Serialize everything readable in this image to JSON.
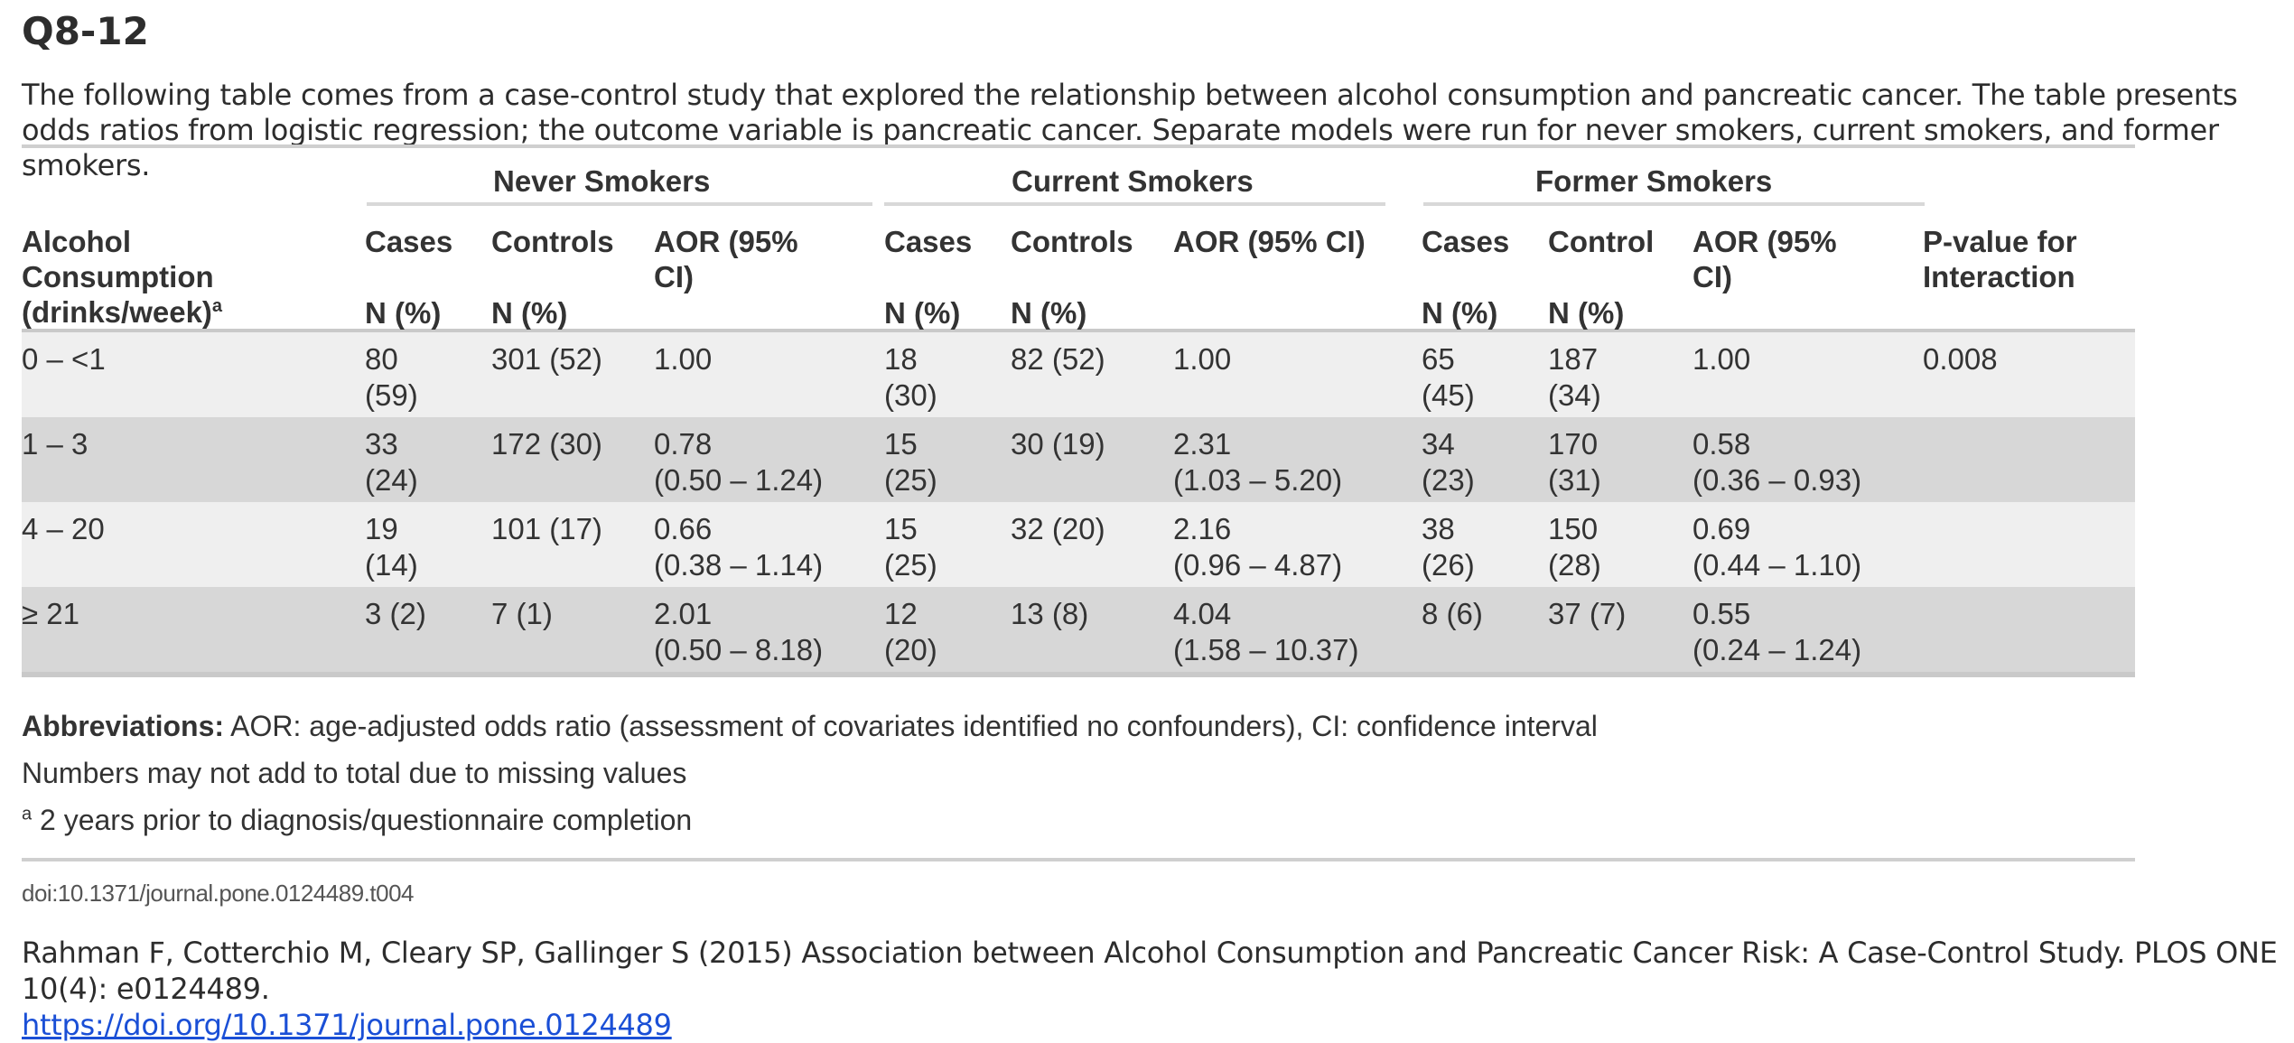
{
  "title": "Q8-12",
  "intro": "The following table comes from a case-control study that explored the relationship between alcohol consumption and pancreatic cancer. The table presents odds ratios from logistic regression; the outcome variable is pancreatic cancer. Separate models were run for never smokers, current smokers, and former smokers.",
  "table": {
    "groups": [
      "Never Smokers",
      "Current Smokers",
      "Former Smokers"
    ],
    "first_col_header": [
      "Alcohol",
      "Consumption",
      "(drinks/week)"
    ],
    "first_col_sup": "a",
    "headers": {
      "never": {
        "cases": "Cases",
        "controls": "Controls",
        "aor": [
          "AOR (95%",
          "CI)"
        ]
      },
      "current": {
        "cases": "Cases",
        "controls": "Controls",
        "aor": [
          "AOR (95% CI)",
          ""
        ]
      },
      "former": {
        "cases": "Cases",
        "controls": "Control",
        "aor": [
          "AOR (95%",
          "CI)"
        ]
      },
      "pvalue": [
        "P-value for",
        "Interaction"
      ]
    },
    "subheader": "N (%)",
    "rows": [
      {
        "label": "0 – <1",
        "never": {
          "cases": [
            "80",
            "(59)"
          ],
          "controls": [
            "301 (52)",
            ""
          ],
          "aor": [
            "1.00",
            ""
          ]
        },
        "current": {
          "cases": [
            "18",
            "(30)"
          ],
          "controls": [
            "82 (52)",
            ""
          ],
          "aor": [
            "1.00",
            ""
          ]
        },
        "former": {
          "cases": [
            "65",
            "(45)"
          ],
          "controls": [
            "187",
            "(34)"
          ],
          "aor": [
            "1.00",
            ""
          ]
        },
        "pvalue": "0.008"
      },
      {
        "label": "1 – 3",
        "never": {
          "cases": [
            "33",
            "(24)"
          ],
          "controls": [
            "172 (30)",
            ""
          ],
          "aor": [
            "0.78",
            "(0.50 – 1.24)"
          ]
        },
        "current": {
          "cases": [
            "15",
            "(25)"
          ],
          "controls": [
            "30 (19)",
            ""
          ],
          "aor": [
            "2.31",
            "(1.03 – 5.20)"
          ]
        },
        "former": {
          "cases": [
            "34",
            "(23)"
          ],
          "controls": [
            "170",
            "(31)"
          ],
          "aor": [
            "0.58",
            "(0.36 – 0.93)"
          ]
        },
        "pvalue": ""
      },
      {
        "label": "4 – 20",
        "never": {
          "cases": [
            "19",
            "(14)"
          ],
          "controls": [
            "101 (17)",
            ""
          ],
          "aor": [
            "0.66",
            "(0.38 – 1.14)"
          ]
        },
        "current": {
          "cases": [
            "15",
            "(25)"
          ],
          "controls": [
            "32 (20)",
            ""
          ],
          "aor": [
            "2.16",
            "(0.96 – 4.87)"
          ]
        },
        "former": {
          "cases": [
            "38",
            "(26)"
          ],
          "controls": [
            "150",
            "(28)"
          ],
          "aor": [
            "0.69",
            "(0.44 – 1.10)"
          ]
        },
        "pvalue": ""
      },
      {
        "label": "≥ 21",
        "never": {
          "cases": [
            "3 (2)",
            ""
          ],
          "controls": [
            "7 (1)",
            ""
          ],
          "aor": [
            "2.01",
            "(0.50 – 8.18)"
          ]
        },
        "current": {
          "cases": [
            "12",
            "(20)"
          ],
          "controls": [
            "13 (8)",
            ""
          ],
          "aor": [
            "4.04",
            "(1.58 – 10.37)"
          ]
        },
        "former": {
          "cases": [
            "8 (6)",
            ""
          ],
          "controls": [
            "37 (7)",
            ""
          ],
          "aor": [
            "0.55",
            "(0.24 – 1.24)"
          ]
        },
        "pvalue": ""
      }
    ]
  },
  "notes": {
    "abbrev_label": "Abbreviations:",
    "abbrev_text": " AOR: age-adjusted odds ratio (assessment of covariates identified no confounders), CI: confidence interval",
    "missing": "Numbers may not add to total due to missing values",
    "footnote_mark": "a",
    "footnote": " 2 years prior to diagnosis/questionnaire completion"
  },
  "doi": "doi:10.1371/journal.pone.0124489.t004",
  "citation": {
    "text": "Rahman F, Cotterchio M, Cleary SP, Gallinger S (2015) Association between Alcohol Consumption and Pancreatic Cancer Risk: A Case-Control Study. PLOS ONE 10(4): e0124489.",
    "link": "https://doi.org/10.1371/journal.pone.0124489"
  }
}
